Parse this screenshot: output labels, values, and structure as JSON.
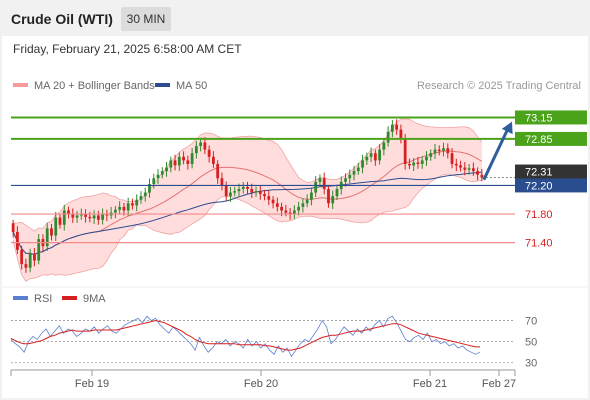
{
  "header": {
    "title": "Crude Oil (WTI)",
    "timeframe_label": "30 MIN"
  },
  "subheader": {
    "datetime": "Friday, February 21, 2025 6:58:00 AM CET"
  },
  "credit": "Research © 2025 Trading Central",
  "colors": {
    "bull": "#2f8a2f",
    "bear": "#d81f1f",
    "bollinger_fill": "#ffdddd",
    "bollinger_line": "#f1a3a3",
    "ma50": "#2a4d8f",
    "resistance": "#4aa31a",
    "support": "#f08a8a",
    "current": "#333333",
    "arrow": "#2f5e9e",
    "rsi": "#5b7fd0",
    "rsi_ma": "#d81f1f"
  },
  "chart_data": [
    {
      "type": "candlestick",
      "legend": [
        {
          "name": "MA 20 + Bollinger Bands",
          "color": "#f59b9b"
        },
        {
          "name": "MA 50",
          "color": "#2a4d8f"
        }
      ],
      "x_ticks": [
        "Feb 19",
        "Feb 20",
        "Feb 21",
        "Feb 27"
      ],
      "ylim": [
        70.85,
        73.45
      ],
      "levels": [
        {
          "value": 73.15,
          "label": "73.15",
          "kind": "resistance"
        },
        {
          "value": 72.85,
          "label": "72.85",
          "kind": "resistance"
        },
        {
          "value": 72.31,
          "label": "72.31",
          "kind": "current"
        },
        {
          "value": 72.2,
          "label": "72.20",
          "kind": "pivot"
        },
        {
          "value": 71.8,
          "label": "71.80",
          "kind": "support"
        },
        {
          "value": 71.4,
          "label": "71.40",
          "kind": "support"
        }
      ],
      "target_arrow": {
        "from": 72.28,
        "to": 73.12
      },
      "closes": [
        71.55,
        71.3,
        71.1,
        71.05,
        71.25,
        71.15,
        71.45,
        71.35,
        71.6,
        71.5,
        71.75,
        71.65,
        71.85,
        71.8,
        71.75,
        71.78,
        71.8,
        71.76,
        71.74,
        71.78,
        71.72,
        71.8,
        71.78,
        71.82,
        71.86,
        71.9,
        71.85,
        71.95,
        71.92,
        72.0,
        72.05,
        72.1,
        72.22,
        72.3,
        72.35,
        72.4,
        72.45,
        72.55,
        72.48,
        72.6,
        72.55,
        72.5,
        72.65,
        72.75,
        72.8,
        72.7,
        72.6,
        72.5,
        72.3,
        72.2,
        72.05,
        72.1,
        72.12,
        72.15,
        72.18,
        72.15,
        72.1,
        72.12,
        72.08,
        72.05,
        72.0,
        71.95,
        71.9,
        71.85,
        71.82,
        71.8,
        71.85,
        71.9,
        71.95,
        72.0,
        72.1,
        72.25,
        72.3,
        72.15,
        71.95,
        72.05,
        72.15,
        72.25,
        72.3,
        72.35,
        72.4,
        72.45,
        72.55,
        72.6,
        72.65,
        72.55,
        72.7,
        72.8,
        72.95,
        73.05,
        72.98,
        72.85,
        72.5,
        72.48,
        72.52,
        72.5,
        72.55,
        72.6,
        72.65,
        72.7,
        72.68,
        72.72,
        72.65,
        72.5,
        72.48,
        72.45,
        72.42,
        72.44,
        72.4,
        72.35,
        72.31
      ]
    },
    {
      "type": "line",
      "legend": [
        {
          "name": "RSI",
          "color": "#5b7fd0"
        },
        {
          "name": "9MA",
          "color": "#d81f1f"
        }
      ],
      "y_ticks": [
        70,
        50,
        30
      ],
      "ylim": [
        25,
        80
      ],
      "series": [
        {
          "name": "RSI",
          "values": [
            52,
            48,
            45,
            40,
            50,
            55,
            52,
            58,
            62,
            55,
            60,
            65,
            58,
            62,
            60,
            55,
            58,
            62,
            60,
            64,
            58,
            62,
            65,
            60,
            58,
            62,
            66,
            68,
            70,
            72,
            68,
            74,
            70,
            72,
            66,
            62,
            58,
            64,
            60,
            56,
            52,
            48,
            42,
            54,
            46,
            40,
            44,
            50,
            48,
            52,
            46,
            50,
            48,
            44,
            52,
            46,
            50,
            44,
            48,
            42,
            38,
            46,
            40,
            44,
            36,
            42,
            48,
            52,
            50,
            56,
            62,
            70,
            64,
            48,
            52,
            58,
            64,
            60,
            56,
            62,
            58,
            64,
            60,
            66,
            70,
            64,
            72,
            74,
            68,
            60,
            52,
            50,
            54,
            56,
            52,
            58,
            50,
            52,
            48,
            50,
            46,
            48,
            44,
            46,
            42,
            40,
            38,
            40
          ]
        },
        {
          "name": "9MA",
          "values": [
            53,
            51,
            49,
            48,
            48,
            49,
            50,
            51,
            53,
            55,
            56,
            58,
            59,
            60,
            61,
            60,
            60,
            60,
            60,
            61,
            61,
            61,
            61,
            61,
            61,
            62,
            63,
            64,
            65,
            66,
            67,
            68,
            69,
            70,
            69,
            68,
            66,
            64,
            62,
            60,
            57,
            55,
            52,
            50,
            49,
            48,
            48,
            48,
            48,
            48,
            48,
            48,
            47,
            47,
            47,
            47,
            47,
            47,
            46,
            46,
            45,
            44,
            43,
            42,
            42,
            43,
            44,
            46,
            48,
            50,
            52,
            54,
            55,
            56,
            56,
            57,
            58,
            59,
            60,
            60,
            60,
            61,
            62,
            63,
            64,
            65,
            66,
            67,
            67,
            66,
            64,
            62,
            60,
            58,
            57,
            56,
            55,
            54,
            53,
            52,
            51,
            50,
            49,
            48,
            47,
            46,
            45,
            45
          ]
        }
      ]
    }
  ]
}
